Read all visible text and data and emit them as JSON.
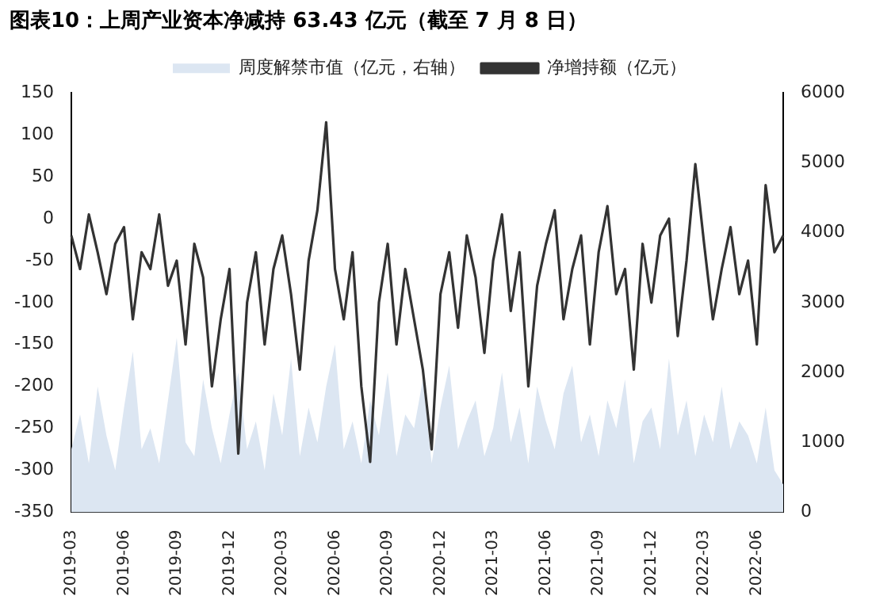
{
  "chart_data": {
    "type": "line",
    "title": "图表10：上周产业资本净减持 63.43 亿元（截至 7 月 8 日）",
    "categories": [
      "2019-03",
      null,
      null,
      null,
      null,
      null,
      "2019-06",
      null,
      null,
      null,
      null,
      null,
      "2019-09",
      null,
      null,
      null,
      null,
      null,
      "2019-12",
      null,
      null,
      null,
      null,
      null,
      "2020-03",
      null,
      null,
      null,
      null,
      null,
      "2020-06",
      null,
      null,
      null,
      null,
      null,
      "2020-09",
      null,
      null,
      null,
      null,
      null,
      "2020-12",
      null,
      null,
      null,
      null,
      null,
      "2021-03",
      null,
      null,
      null,
      null,
      null,
      "2021-06",
      null,
      null,
      null,
      null,
      null,
      "2021-09",
      null,
      null,
      null,
      null,
      null,
      "2021-12",
      null,
      null,
      null,
      null,
      null,
      "2022-03",
      null,
      null,
      null,
      null,
      null,
      "2022-06",
      null,
      null,
      null
    ],
    "series": [
      {
        "name": "周度解禁市值（亿元，右轴）",
        "type": "area",
        "axis": "y2",
        "color": "#dce6f2",
        "values": [
          900,
          1400,
          700,
          1800,
          1100,
          600,
          1500,
          2300,
          900,
          1200,
          700,
          1600,
          2500,
          1000,
          800,
          1900,
          1200,
          700,
          1400,
          2000,
          900,
          1300,
          600,
          1700,
          1100,
          2200,
          800,
          1500,
          1000,
          1800,
          2400,
          900,
          1300,
          700,
          1600,
          1100,
          2000,
          800,
          1400,
          1200,
          1900,
          700,
          1500,
          2100,
          900,
          1300,
          1600,
          800,
          1200,
          2000,
          1000,
          1500,
          700,
          1800,
          1300,
          900,
          1700,
          2100,
          1000,
          1400,
          800,
          1600,
          1200,
          1900,
          700,
          1300,
          1500,
          900,
          2200,
          1100,
          1600,
          800,
          1400,
          1000,
          1800,
          900,
          1300,
          1100,
          700,
          1500,
          600,
          400
        ]
      },
      {
        "name": "净增持额（亿元）",
        "type": "line",
        "color": "#333333",
        "values": [
          -20,
          -60,
          5,
          -40,
          -90,
          -30,
          -10,
          -120,
          -40,
          -60,
          5,
          -80,
          -50,
          -150,
          -30,
          -70,
          -200,
          -120,
          -60,
          -280,
          -100,
          -40,
          -150,
          -60,
          -20,
          -90,
          -180,
          -50,
          10,
          115,
          -60,
          -120,
          -40,
          -200,
          -290,
          -100,
          -30,
          -150,
          -60,
          -120,
          -180,
          -275,
          -90,
          -40,
          -130,
          -20,
          -70,
          -160,
          -50,
          5,
          -110,
          -40,
          -200,
          -80,
          -30,
          10,
          -120,
          -60,
          -20,
          -150,
          -40,
          15,
          -90,
          -60,
          -180,
          -30,
          -100,
          -20,
          0,
          -140,
          -50,
          65,
          -30,
          -120,
          -60,
          -10,
          -90,
          -50,
          -150,
          40,
          -40,
          -20
        ]
      }
    ],
    "ylim": [
      -350,
      150
    ],
    "yticks": [
      -350,
      -300,
      -250,
      -200,
      -150,
      -100,
      -50,
      0,
      50,
      100,
      150
    ],
    "y2lim": [
      0,
      6000
    ],
    "y2ticks": [
      0,
      1000,
      2000,
      3000,
      4000,
      5000,
      6000
    ],
    "legend": "top",
    "grid": false,
    "marker": "none"
  }
}
